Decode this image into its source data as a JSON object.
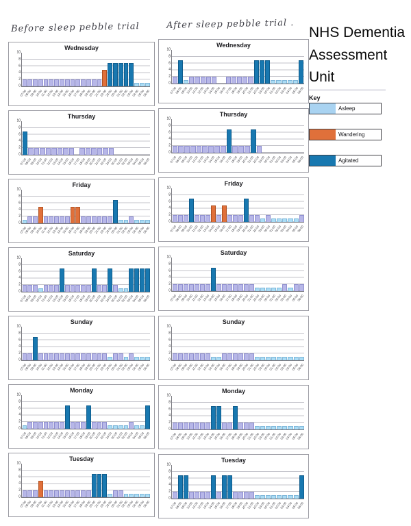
{
  "page": {
    "left_annotation": "Before sleep pebble trial",
    "right_annotation": "After sleep pebble trial .",
    "title_line1": "NHS Dementia",
    "title_line2": "Assessment Unit",
    "key": {
      "label": "Key",
      "items": [
        {
          "label": "Asleep",
          "color": "#a9d3f1"
        },
        {
          "label": "Wandering",
          "color": "#e0703a"
        },
        {
          "label": "Agitated",
          "color": "#1878b0"
        }
      ]
    }
  },
  "chart_meta": {
    "type": "bar",
    "ylim": [
      0,
      10
    ],
    "y_ticks": [
      10,
      8,
      6,
      4,
      2,
      0
    ],
    "grid": "horizontal",
    "hours": [
      "07:00",
      "08:00",
      "09:00",
      "10:00",
      "11:00",
      "12:00",
      "13:00",
      "14:00",
      "15:00",
      "16:00",
      "17:00",
      "18:00",
      "19:00",
      "20:00",
      "21:00",
      "22:00",
      "23:00",
      "00:00",
      "01:00",
      "02:00",
      "03:00",
      "04:00",
      "05:00",
      "06:00"
    ],
    "states": {
      "L": {
        "name": "asleep-purple",
        "value": 2,
        "color": "#b7b7e8",
        "border": "#8f8fd0"
      },
      "S": {
        "name": "asleep-blue",
        "value": 1,
        "color": "#aadcf5",
        "border": "#7db6d9"
      },
      "W": {
        "name": "wandering",
        "value": 5,
        "color": "#e0703a",
        "border": "#b05020"
      },
      "A": {
        "name": "agitated",
        "value": 7,
        "color": "#1878b0",
        "border": "#0f5c8c"
      },
      "0": {
        "name": "none",
        "value": 0,
        "color": "transparent",
        "border": "transparent"
      }
    }
  },
  "chart_data": [
    {
      "type": "bar",
      "group": "before",
      "title": "Wednesday",
      "pattern": "LLLLLLLLLLLLLLLWAAAAASSS",
      "values": [
        2,
        2,
        2,
        2,
        2,
        2,
        2,
        2,
        2,
        2,
        2,
        2,
        2,
        2,
        2,
        5,
        7,
        7,
        7,
        7,
        7,
        1,
        1,
        1
      ]
    },
    {
      "type": "bar",
      "group": "before",
      "title": "Thursday",
      "pattern": "ALLLLLLLL0LLLLLL00000000",
      "values": [
        7,
        2,
        2,
        2,
        2,
        2,
        2,
        2,
        2,
        0,
        2,
        2,
        2,
        2,
        2,
        2,
        0,
        0,
        0,
        0,
        0,
        0,
        0,
        0
      ]
    },
    {
      "type": "bar",
      "group": "before",
      "title": "Friday",
      "pattern": "SLLWLLLLLWWLLLLLLASSLSSS",
      "values": [
        1,
        2,
        2,
        5,
        2,
        2,
        2,
        2,
        2,
        5,
        5,
        2,
        2,
        2,
        2,
        2,
        2,
        7,
        1,
        1,
        2,
        1,
        1,
        1
      ]
    },
    {
      "type": "bar",
      "group": "before",
      "title": "Saturday",
      "pattern": "LLLSLLLALLLLLALLALSSAAAA",
      "values": [
        2,
        2,
        2,
        1,
        2,
        2,
        2,
        7,
        2,
        2,
        2,
        2,
        2,
        7,
        2,
        2,
        7,
        2,
        1,
        1,
        7,
        7,
        7,
        7
      ]
    },
    {
      "type": "bar",
      "group": "before",
      "title": "Sunday",
      "pattern": "LLALLLLLLLLLLLLLSLLSLSSS",
      "values": [
        2,
        2,
        7,
        2,
        2,
        2,
        2,
        2,
        2,
        2,
        2,
        2,
        2,
        2,
        2,
        2,
        1,
        2,
        2,
        1,
        2,
        1,
        1,
        1
      ]
    },
    {
      "type": "bar",
      "group": "before",
      "title": "Monday",
      "pattern": "SLLLLLLLALLLALLLSSSSLSSA",
      "values": [
        1,
        2,
        2,
        2,
        2,
        2,
        2,
        2,
        7,
        2,
        2,
        2,
        7,
        2,
        2,
        2,
        1,
        1,
        1,
        1,
        2,
        1,
        1,
        7
      ]
    },
    {
      "type": "bar",
      "group": "before",
      "title": "Tuesday",
      "pattern": "LLLWLLLLLLLLLAAASLLSSSSS",
      "values": [
        2,
        2,
        2,
        5,
        2,
        2,
        2,
        2,
        2,
        2,
        2,
        2,
        2,
        7,
        7,
        7,
        1,
        2,
        2,
        1,
        1,
        1,
        1,
        1
      ]
    },
    {
      "type": "bar",
      "group": "after",
      "title": "Wednesday",
      "pattern": "LASLLLLL00LLLLLAAASSSSSA",
      "values": [
        2,
        7,
        1,
        2,
        2,
        2,
        2,
        2,
        0,
        0,
        2,
        2,
        2,
        2,
        2,
        7,
        7,
        7,
        1,
        1,
        1,
        1,
        1,
        7
      ]
    },
    {
      "type": "bar",
      "group": "after",
      "title": "Thursday",
      "pattern": "LLLLLLLLLALLLAL000000000",
      "values": [
        2,
        2,
        2,
        2,
        2,
        2,
        2,
        2,
        2,
        7,
        2,
        2,
        2,
        7,
        2,
        0,
        0,
        0,
        0,
        0,
        0,
        0,
        0,
        0
      ]
    },
    {
      "type": "bar",
      "group": "after",
      "title": "Friday",
      "pattern": "LLLALLLWLWLLLALLSLSSSSSL",
      "values": [
        2,
        2,
        2,
        7,
        2,
        2,
        2,
        5,
        2,
        5,
        2,
        2,
        2,
        7,
        2,
        2,
        1,
        2,
        1,
        1,
        1,
        1,
        1,
        2
      ]
    },
    {
      "type": "bar",
      "group": "after",
      "title": "Saturday",
      "pattern": "LLLLLLLALLLLLLLSSSSSLSLL",
      "values": [
        2,
        2,
        2,
        2,
        2,
        2,
        2,
        7,
        2,
        2,
        2,
        2,
        2,
        2,
        2,
        1,
        1,
        1,
        1,
        1,
        2,
        1,
        2,
        2
      ]
    },
    {
      "type": "bar",
      "group": "after",
      "title": "Sunday",
      "pattern": "LLLLLLLSSLLLLLLSSSSSSSSS",
      "values": [
        2,
        2,
        2,
        2,
        2,
        2,
        2,
        1,
        1,
        2,
        2,
        2,
        2,
        2,
        2,
        1,
        1,
        1,
        1,
        1,
        1,
        1,
        1,
        1
      ]
    },
    {
      "type": "bar",
      "group": "after",
      "title": "Monday",
      "pattern": "LLLLLLLAALLALLLSSSSSSSSS",
      "values": [
        2,
        2,
        2,
        2,
        2,
        2,
        2,
        7,
        7,
        2,
        2,
        7,
        2,
        2,
        2,
        1,
        1,
        1,
        1,
        1,
        1,
        1,
        1,
        1
      ]
    },
    {
      "type": "bar",
      "group": "after",
      "title": "Tuesday",
      "pattern": "LAALLLLALAALLLLSSSSSSSSA",
      "values": [
        2,
        7,
        7,
        2,
        2,
        2,
        2,
        7,
        2,
        7,
        7,
        2,
        2,
        2,
        2,
        1,
        1,
        1,
        1,
        1,
        1,
        1,
        1,
        7
      ]
    }
  ]
}
